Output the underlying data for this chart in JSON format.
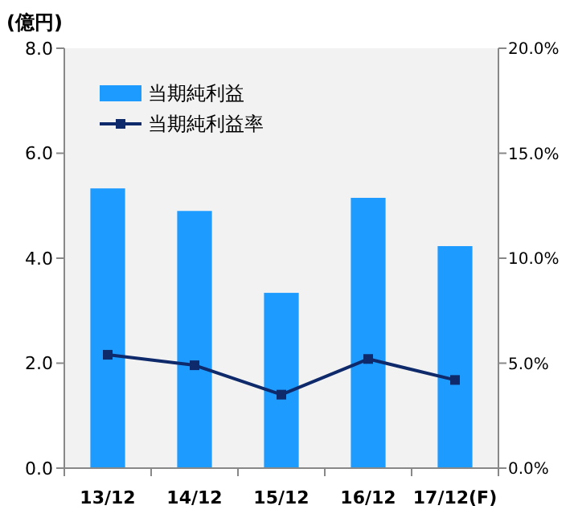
{
  "chart_data": {
    "type": "bar",
    "ylabel": "(億円)",
    "categories": [
      "13/12",
      "14/12",
      "15/12",
      "16/12",
      "17/12(F)"
    ],
    "series": [
      {
        "name": "当期純利益",
        "color": "#1e9bff",
        "values": [
          5.33,
          4.9,
          3.34,
          5.15,
          4.23
        ]
      },
      {
        "name": "当期純利益率",
        "type": "line",
        "axis": "y2",
        "color": "#0f2a6b",
        "values": [
          5.4,
          4.9,
          3.5,
          5.2,
          4.2
        ]
      }
    ],
    "ylim": [
      0,
      8
    ],
    "yticks": [
      {
        "value": 0,
        "label": "0.0"
      },
      {
        "value": 2,
        "label": "2.0"
      },
      {
        "value": 4,
        "label": "4.0"
      },
      {
        "value": 6,
        "label": "6.0"
      },
      {
        "value": 8,
        "label": "8.0"
      }
    ],
    "y2lim": [
      0,
      20
    ],
    "y2ticks": [
      {
        "value": 0,
        "label": "0.0%"
      },
      {
        "value": 5,
        "label": "5.0%"
      },
      {
        "value": 10,
        "label": "10.0%"
      },
      {
        "value": 15,
        "label": "15.0%"
      },
      {
        "value": 20,
        "label": "20.0%"
      }
    ],
    "legend": "top left",
    "marker": "square",
    "grid": false
  }
}
